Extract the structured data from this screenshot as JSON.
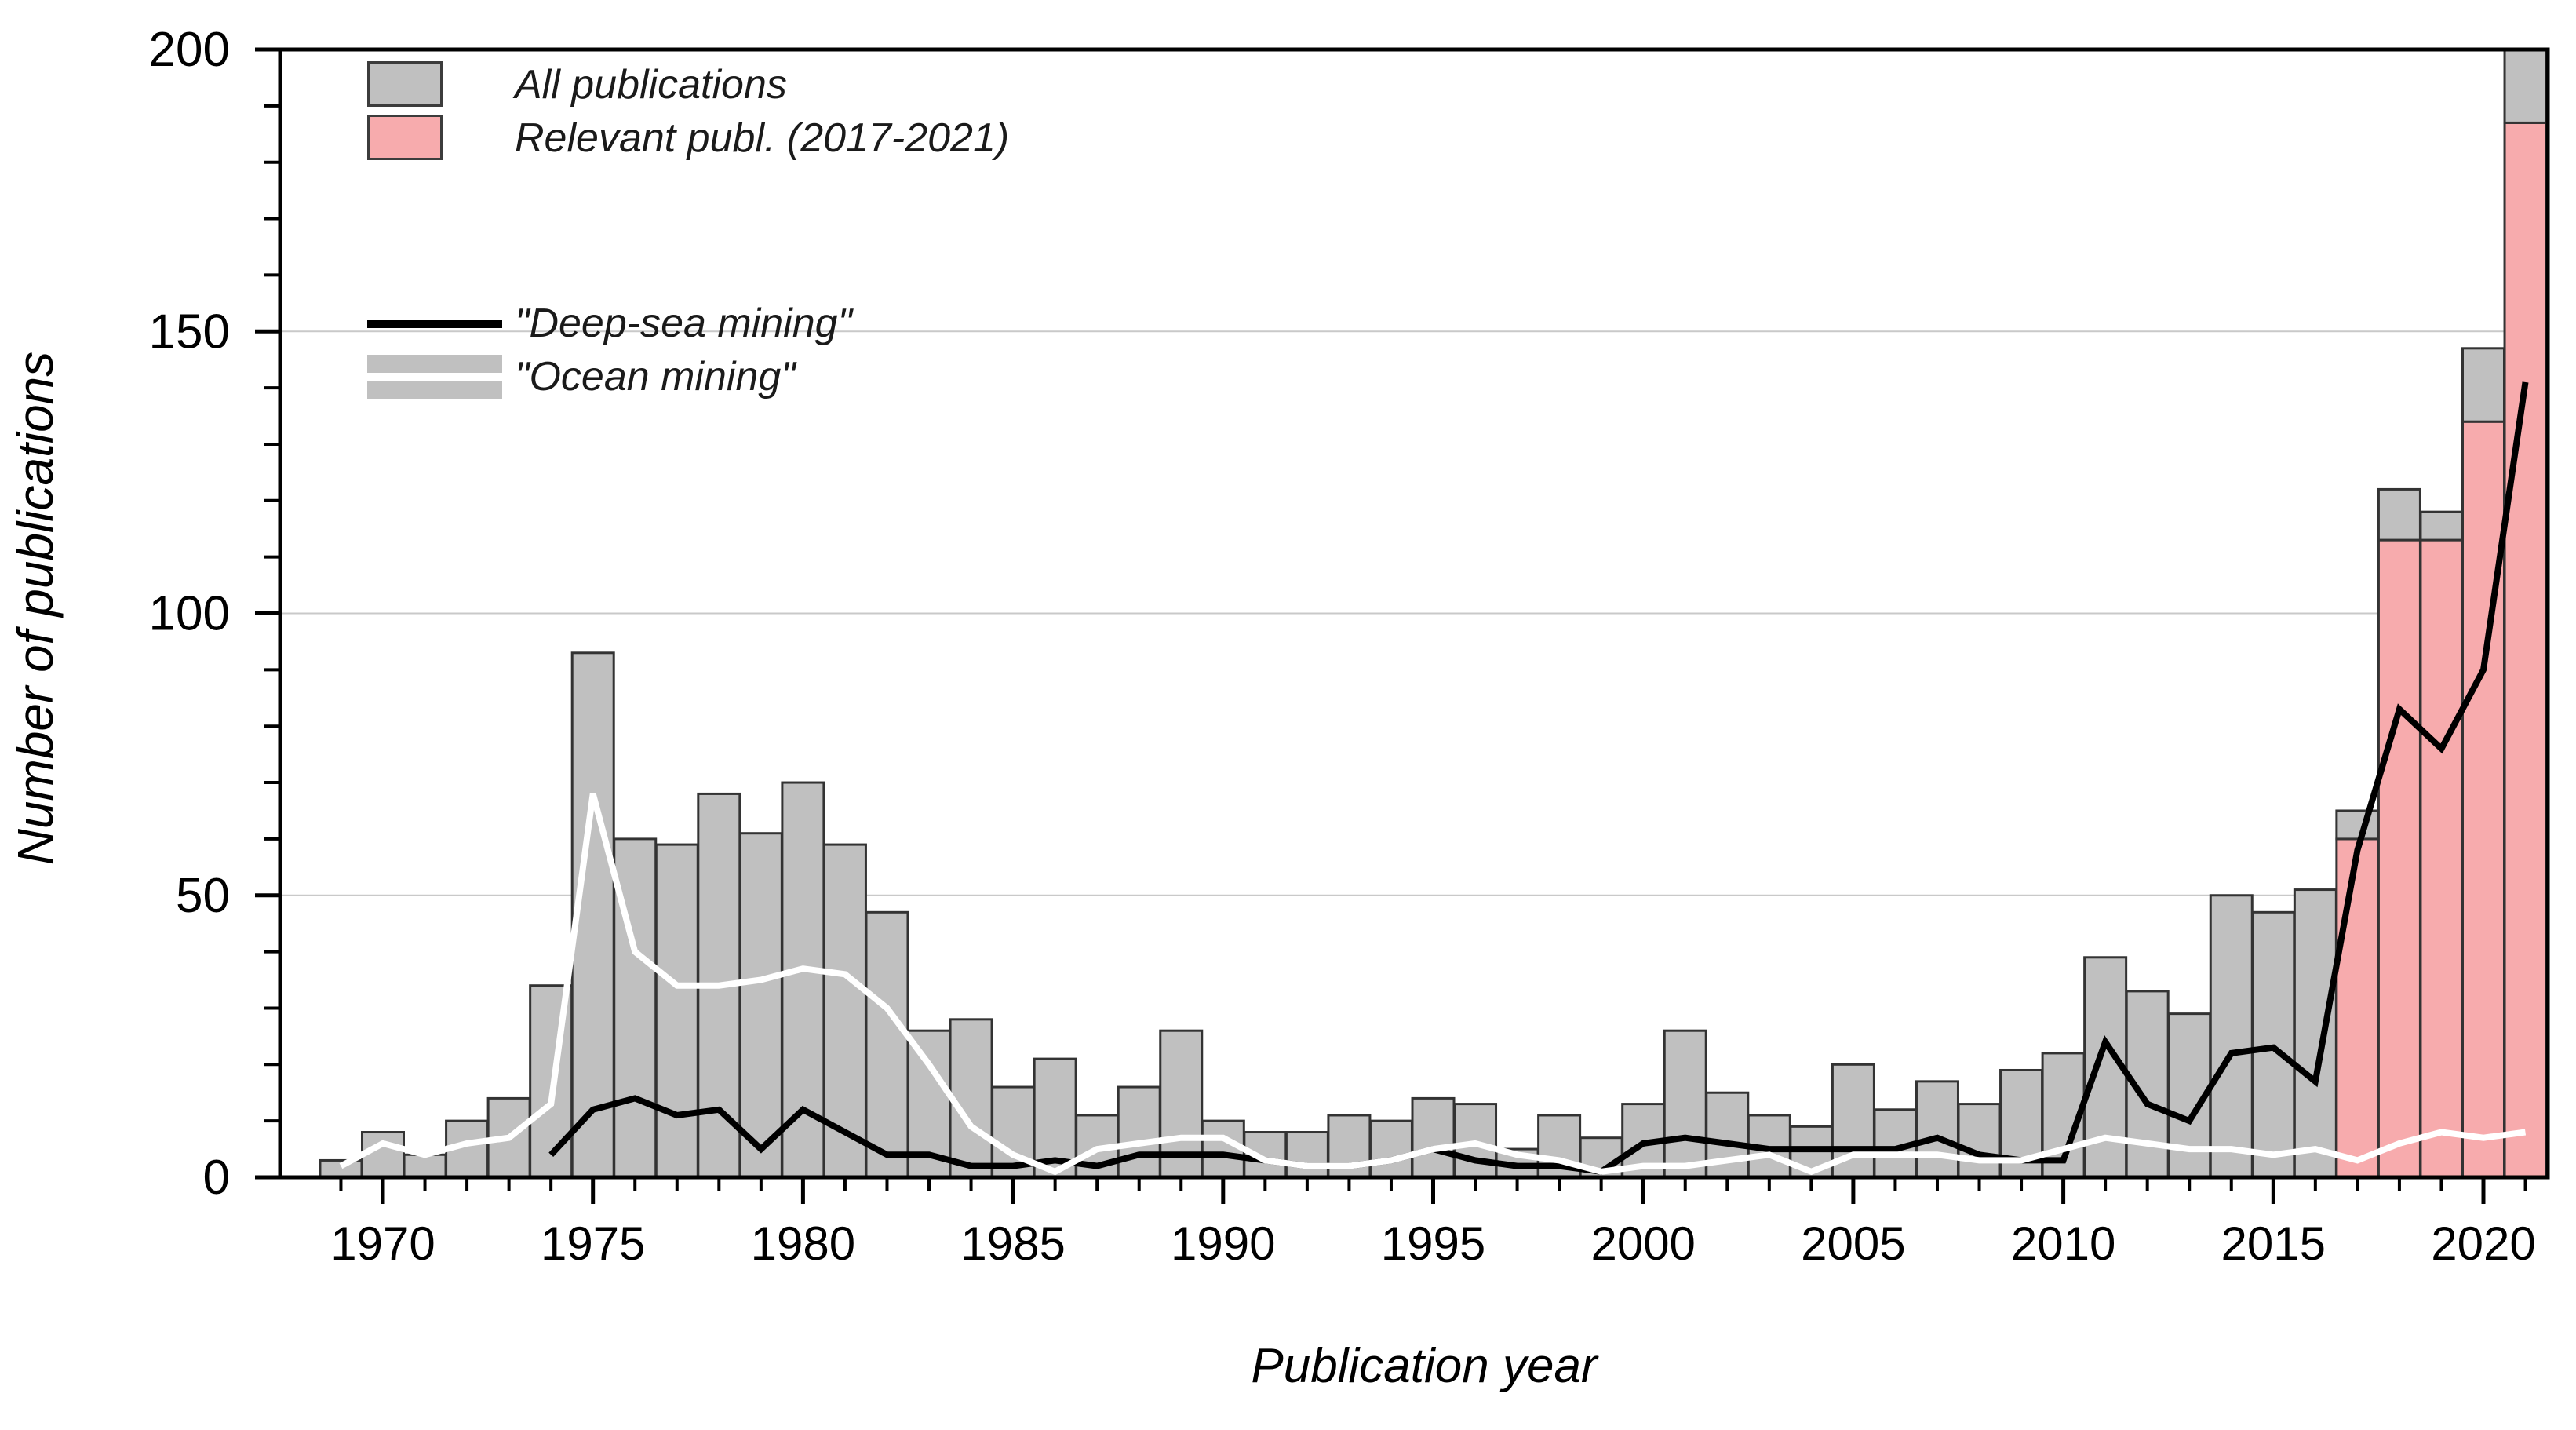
{
  "chart_data": {
    "type": "bar",
    "title": "",
    "xlabel": "Publication year",
    "ylabel": "Number of publications",
    "ylim": [
      0,
      200
    ],
    "xlim": [
      1968.5,
      2021.5
    ],
    "grid": "horizontal gridlines at 50, 100, 150",
    "legend_position": "top-left inside plot area",
    "y_major_ticks": [
      0,
      50,
      100,
      150,
      200
    ],
    "y_tick_labels": [
      "0",
      "50",
      "100",
      "150",
      "200"
    ],
    "y_minor_step": 10,
    "x_major_ticks": [
      1970,
      1975,
      1980,
      1985,
      1990,
      1995,
      2000,
      2005,
      2010,
      2015,
      2020
    ],
    "x_tick_labels": [
      "1970",
      "1975",
      "1980",
      "1985",
      "1990",
      "1995",
      "2000",
      "2005",
      "2010",
      "2015",
      "2020"
    ],
    "x_minor_step": 1,
    "years": [
      1969,
      1970,
      1971,
      1972,
      1973,
      1974,
      1975,
      1976,
      1977,
      1978,
      1979,
      1980,
      1981,
      1982,
      1983,
      1984,
      1985,
      1986,
      1987,
      1988,
      1989,
      1990,
      1991,
      1992,
      1993,
      1994,
      1995,
      1996,
      1997,
      1998,
      1999,
      2000,
      2001,
      2002,
      2003,
      2004,
      2005,
      2006,
      2007,
      2008,
      2009,
      2010,
      2011,
      2012,
      2013,
      2014,
      2015,
      2016,
      2017,
      2018,
      2019,
      2020,
      2021
    ],
    "series": [
      {
        "name": "All publications",
        "type": "bar",
        "color": "#c0c0c0",
        "edge_color": "#333333",
        "values": [
          3,
          8,
          4,
          10,
          14,
          34,
          93,
          60,
          59,
          68,
          61,
          70,
          59,
          47,
          26,
          28,
          16,
          21,
          11,
          16,
          26,
          10,
          8,
          8,
          11,
          10,
          14,
          13,
          5,
          11,
          7,
          13,
          26,
          15,
          11,
          9,
          20,
          12,
          17,
          13,
          19,
          22,
          39,
          33,
          29,
          50,
          47,
          51,
          65,
          122,
          118,
          147,
          200
        ]
      },
      {
        "name": "Relevant publ. (2017-2021)",
        "type": "bar",
        "color": "#f7abad",
        "edge_color": "#333333",
        "values": [
          null,
          null,
          null,
          null,
          null,
          null,
          null,
          null,
          null,
          null,
          null,
          null,
          null,
          null,
          null,
          null,
          null,
          null,
          null,
          null,
          null,
          null,
          null,
          null,
          null,
          null,
          null,
          null,
          null,
          null,
          null,
          null,
          null,
          null,
          null,
          null,
          null,
          null,
          null,
          null,
          null,
          null,
          null,
          null,
          null,
          null,
          null,
          null,
          60,
          113,
          113,
          134,
          187
        ]
      },
      {
        "name": "\"Deep-sea mining\"",
        "type": "line",
        "color": "#000000",
        "start_year": 1974,
        "values": [
          4,
          12,
          14,
          11,
          12,
          5,
          12,
          8,
          4,
          4,
          2,
          2,
          3,
          2,
          4,
          4,
          4,
          3,
          2,
          2,
          3,
          5,
          3,
          2,
          2,
          1,
          6,
          7,
          6,
          5,
          5,
          5,
          5,
          7,
          4,
          3,
          3,
          24,
          13,
          10,
          22,
          23,
          17,
          58,
          83,
          76,
          90,
          141
        ]
      },
      {
        "name": "\"Ocean mining\"",
        "type": "line",
        "color": "#ffffff",
        "start_year": 1969,
        "values": [
          2,
          6,
          4,
          6,
          7,
          13,
          68,
          40,
          34,
          34,
          35,
          37,
          36,
          30,
          20,
          9,
          4,
          1,
          5,
          6,
          7,
          7,
          3,
          2,
          2,
          3,
          5,
          6,
          4,
          3,
          1,
          2,
          2,
          3,
          4,
          1,
          4,
          4,
          4,
          3,
          3,
          5,
          7,
          6,
          5,
          5,
          4,
          5,
          3,
          6,
          8,
          7,
          8
        ]
      }
    ]
  },
  "axes": {
    "xlabel": "Publication year",
    "ylabel": "Number of publications"
  },
  "legend": {
    "all_label": "All publications",
    "relevant_label": "Relevant publ. (2017-2021)",
    "deep_sea_label": "\"Deep-sea mining\"",
    "ocean_label": "\"Ocean mining\""
  }
}
